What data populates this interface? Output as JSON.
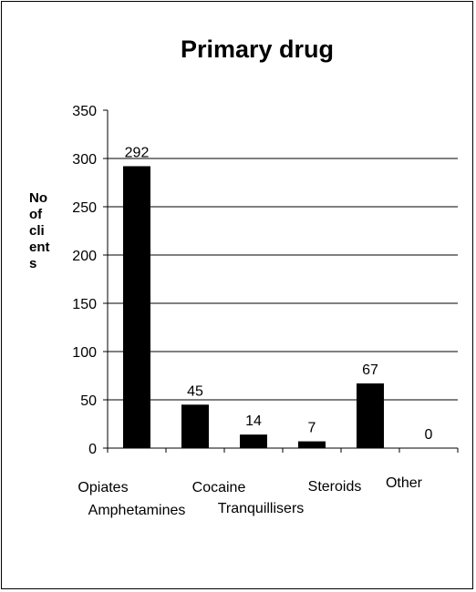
{
  "chart_data": {
    "type": "bar",
    "title": "Primary drug",
    "ylabel_lines": [
      "No",
      "of",
      "cli",
      "ent",
      "s"
    ],
    "categories": [
      "Opiates",
      "Amphetamines",
      "Cocaine",
      "Tranquillisers",
      "Steroids",
      "Other"
    ],
    "values": [
      292,
      45,
      14,
      7,
      67,
      0
    ],
    "ylim": [
      0,
      350
    ],
    "yticks": [
      0,
      50,
      100,
      150,
      200,
      250,
      300,
      350
    ],
    "grid": true,
    "bar_color": "#000000",
    "legend": "none"
  }
}
